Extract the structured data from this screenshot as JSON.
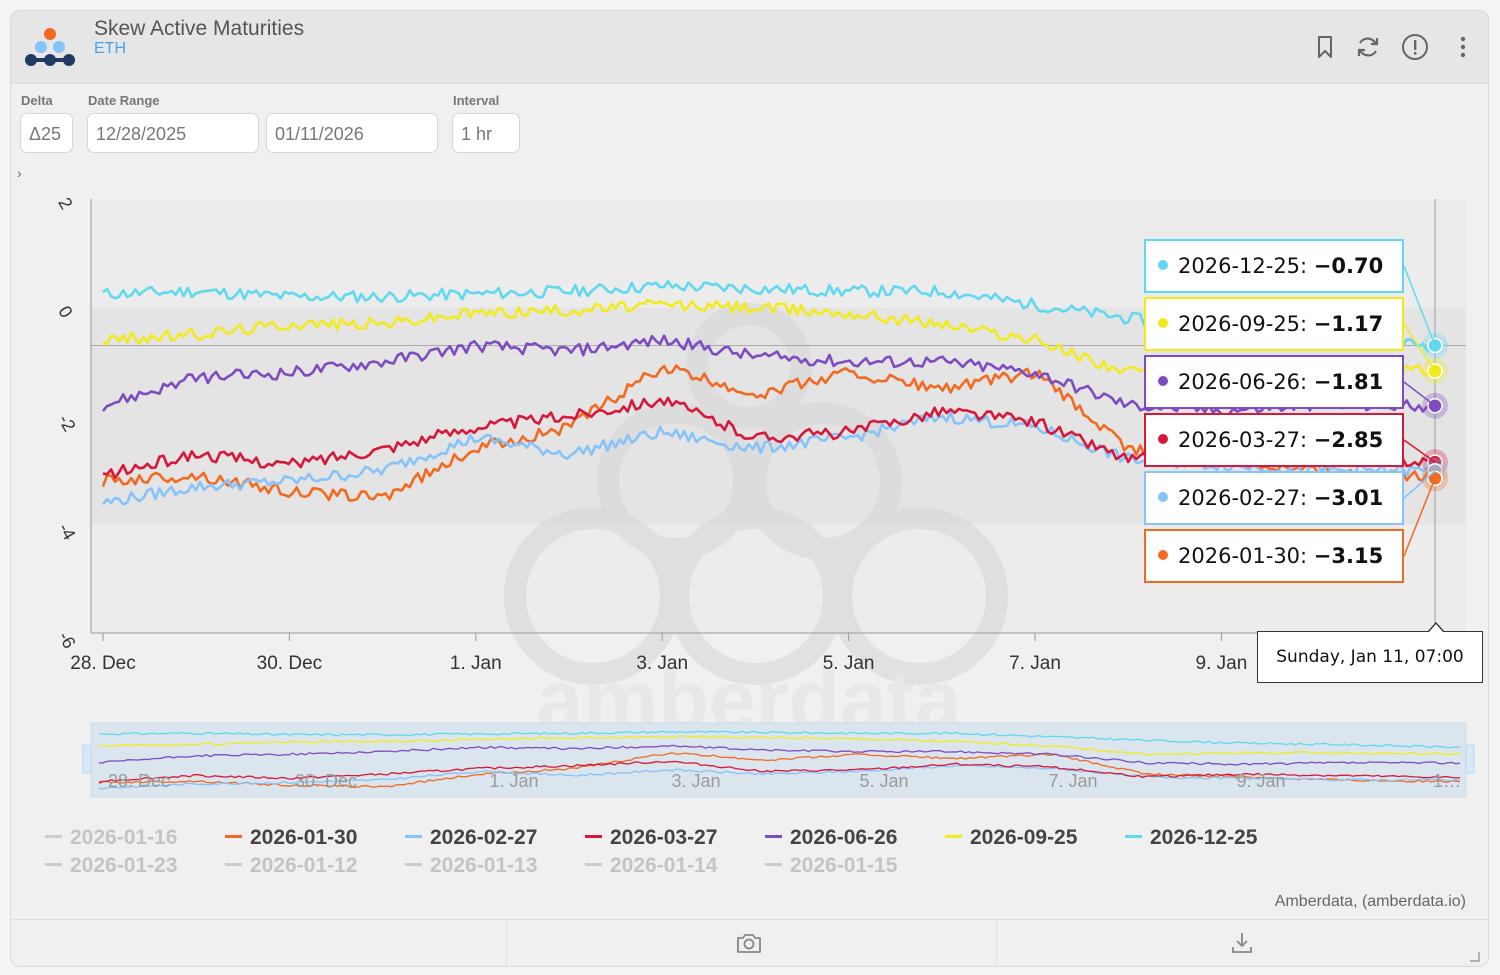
{
  "app": {
    "title": "Skew Active Maturities",
    "asset": "ETH"
  },
  "controls": {
    "delta_label": "Delta",
    "delta_value": "Δ25",
    "date_range_label": "Date Range",
    "start_date": "12/28/2025",
    "end_date": "01/11/2026",
    "interval_label": "Interval",
    "interval_value": "1 hr"
  },
  "header_icons": [
    "bookmark-icon",
    "refresh-icon",
    "info-icon",
    "more-icon"
  ],
  "footer_icons": [
    "camera-icon",
    "download-icon"
  ],
  "watermark": "amberdata",
  "credit": "Amberdata, (amberdata.io)",
  "tooltip": {
    "date": "Sunday, Jan 11, 07:00",
    "rows": [
      {
        "label": "2026-12-25:",
        "value": "−0.70",
        "color": "#60d9f0"
      },
      {
        "label": "2026-09-25:",
        "value": "−1.17",
        "color": "#f2ea19"
      },
      {
        "label": "2026-06-26:",
        "value": "−1.81",
        "color": "#7e4bc1"
      },
      {
        "label": "2026-03-27:",
        "value": "−2.85",
        "color": "#d6183a"
      },
      {
        "label": "2026-02-27:",
        "value": "−3.01",
        "color": "#86c3fa"
      },
      {
        "label": "2026-01-30:",
        "value": "−3.15",
        "color": "#f26a21"
      }
    ]
  },
  "legend": {
    "row1": [
      {
        "label": "2026-01-16",
        "color": "#cccccc",
        "active": false
      },
      {
        "label": "2026-01-30",
        "color": "#f26a21",
        "active": true
      },
      {
        "label": "2026-02-27",
        "color": "#86c3fa",
        "active": true
      },
      {
        "label": "2026-03-27",
        "color": "#d6183a",
        "active": true
      },
      {
        "label": "2026-06-26",
        "color": "#7e4bc1",
        "active": true
      },
      {
        "label": "2026-09-25",
        "color": "#f2ea19",
        "active": true
      },
      {
        "label": "2026-12-25",
        "color": "#60d9f0",
        "active": true
      }
    ],
    "row2": [
      {
        "label": "2026-01-23",
        "color": "#cccccc",
        "active": false
      },
      {
        "label": "2026-01-12",
        "color": "#cccccc",
        "active": false
      },
      {
        "label": "2026-01-13",
        "color": "#cccccc",
        "active": false
      },
      {
        "label": "2026-01-14",
        "color": "#cccccc",
        "active": false
      },
      {
        "label": "2026-01-15",
        "color": "#cccccc",
        "active": false
      }
    ]
  },
  "chart_data": {
    "type": "line",
    "title": "Skew Active Maturities",
    "x_ticks": [
      "28. Dec",
      "30. Dec",
      "1. Jan",
      "3. Jan",
      "5. Jan",
      "7. Jan",
      "9. Jan"
    ],
    "navigator_ticks": [
      "28. Dec",
      "30. Dec",
      "1. Jan",
      "3. Jan",
      "5. Jan",
      "7. Jan",
      "9. Jan",
      "1…"
    ],
    "y_ticks": [
      "2",
      "0",
      "-2",
      "-4",
      "-6"
    ],
    "ylim": [
      -6,
      2
    ],
    "x_range": [
      "2025-12-28 00:00",
      "2026-01-11 07:00"
    ],
    "grid": true,
    "series": [
      {
        "name": "2026-12-25",
        "color": "#60d9f0",
        "x": [
          "2025-12-28",
          "2025-12-29",
          "2025-12-30",
          "2025-12-31",
          "2026-01-01",
          "2026-01-02",
          "2026-01-03",
          "2026-01-04",
          "2026-01-05",
          "2026-01-06",
          "2026-01-07",
          "2026-01-08",
          "2026-01-09",
          "2026-01-10",
          "2026-01-11"
        ],
        "values": [
          0.25,
          0.3,
          0.2,
          0.2,
          0.25,
          0.3,
          0.4,
          0.35,
          0.3,
          0.3,
          0.05,
          -0.2,
          -0.4,
          -0.5,
          -0.7
        ]
      },
      {
        "name": "2026-09-25",
        "color": "#f2ea19",
        "x": [
          "2025-12-28",
          "2025-12-29",
          "2025-12-30",
          "2025-12-31",
          "2026-01-01",
          "2026-01-02",
          "2026-01-03",
          "2026-01-04",
          "2026-01-05",
          "2026-01-06",
          "2026-01-07",
          "2026-01-08",
          "2026-01-09",
          "2026-01-10",
          "2026-01-11"
        ],
        "values": [
          -0.6,
          -0.5,
          -0.3,
          -0.3,
          -0.1,
          -0.05,
          0.05,
          0.0,
          -0.1,
          -0.3,
          -0.6,
          -1.2,
          -1.1,
          -1.1,
          -1.17
        ]
      },
      {
        "name": "2026-06-26",
        "color": "#7e4bc1",
        "x": [
          "2025-12-28",
          "2025-12-29",
          "2025-12-30",
          "2025-12-31",
          "2026-01-01",
          "2026-01-02",
          "2026-01-03",
          "2026-01-04",
          "2026-01-05",
          "2026-01-06",
          "2026-01-07",
          "2026-01-08",
          "2026-01-09",
          "2026-01-10",
          "2026-01-11"
        ],
        "values": [
          -1.8,
          -1.3,
          -1.2,
          -1.0,
          -0.7,
          -0.8,
          -0.6,
          -0.9,
          -1.0,
          -1.0,
          -1.2,
          -1.8,
          -1.9,
          -1.8,
          -1.81
        ]
      },
      {
        "name": "2026-03-27",
        "color": "#d6183a",
        "x": [
          "2025-12-28",
          "2025-12-29",
          "2025-12-30",
          "2025-12-31",
          "2026-01-01",
          "2026-01-02",
          "2026-01-03",
          "2026-01-04",
          "2026-01-05",
          "2026-01-06",
          "2026-01-07",
          "2026-01-08",
          "2026-01-09",
          "2026-01-10",
          "2026-01-11"
        ],
        "values": [
          -3.1,
          -2.7,
          -2.9,
          -2.6,
          -2.2,
          -2.0,
          -1.7,
          -2.4,
          -2.3,
          -1.9,
          -2.1,
          -2.8,
          -2.6,
          -2.7,
          -2.85
        ]
      },
      {
        "name": "2026-02-27",
        "color": "#86c3fa",
        "x": [
          "2025-12-28",
          "2025-12-29",
          "2025-12-30",
          "2025-12-31",
          "2026-01-01",
          "2026-01-02",
          "2026-01-03",
          "2026-01-04",
          "2026-01-05",
          "2026-01-06",
          "2026-01-07",
          "2026-01-08",
          "2026-01-09",
          "2026-01-10",
          "2026-01-11"
        ],
        "values": [
          -3.6,
          -3.3,
          -3.2,
          -3.0,
          -2.4,
          -2.7,
          -2.3,
          -2.6,
          -2.4,
          -2.0,
          -2.2,
          -2.8,
          -2.9,
          -3.0,
          -3.01
        ]
      },
      {
        "name": "2026-01-30",
        "color": "#f26a21",
        "x": [
          "2025-12-28",
          "2025-12-29",
          "2025-12-30",
          "2025-12-31",
          "2026-01-01",
          "2026-01-02",
          "2026-01-03",
          "2026-01-04",
          "2026-01-05",
          "2026-01-06",
          "2026-01-07",
          "2026-01-08",
          "2026-01-09",
          "2026-01-10",
          "2026-01-11"
        ],
        "values": [
          -3.2,
          -3.1,
          -3.4,
          -3.5,
          -2.6,
          -2.2,
          -1.1,
          -1.6,
          -1.2,
          -1.5,
          -1.2,
          -2.6,
          -2.8,
          -3.0,
          -3.15
        ]
      }
    ]
  }
}
